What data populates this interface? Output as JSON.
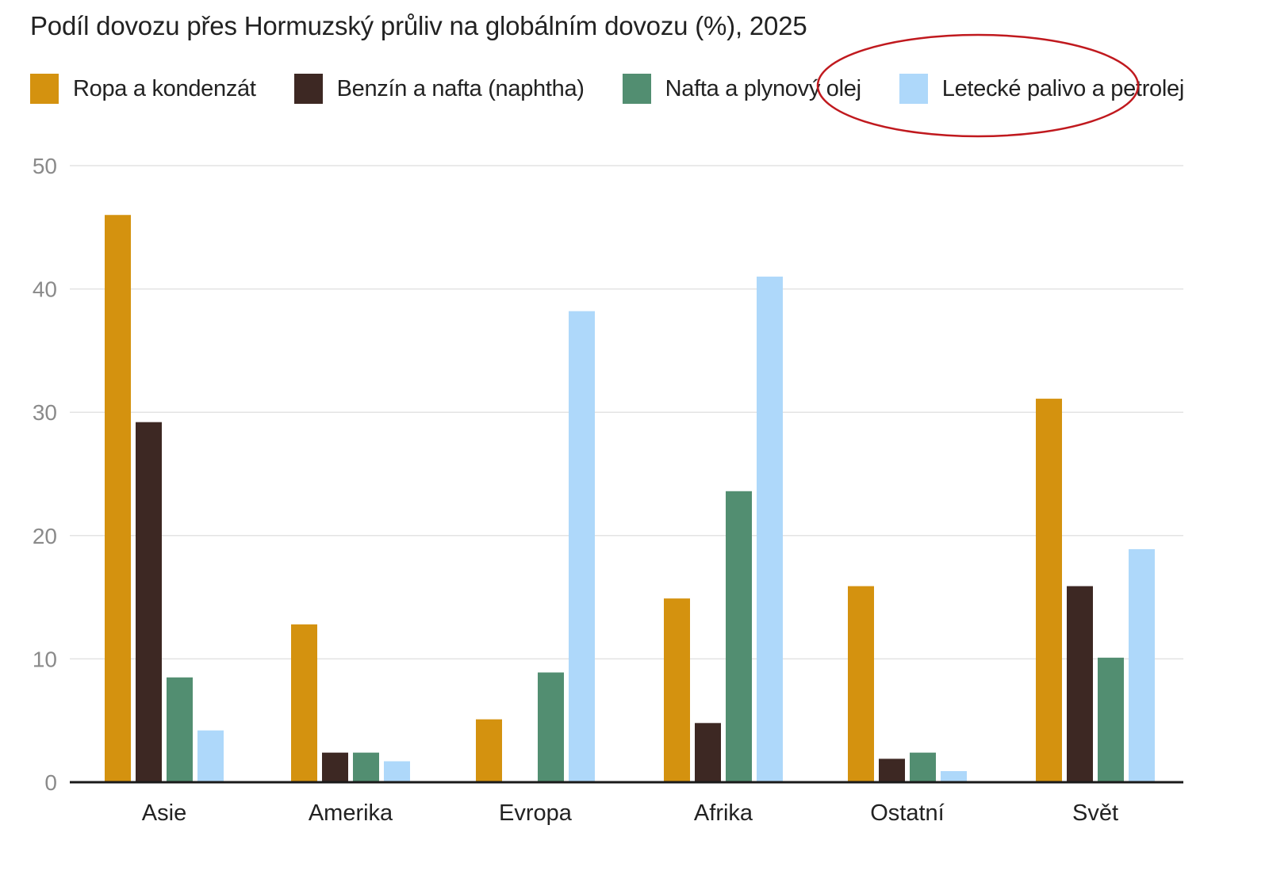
{
  "chart_data": {
    "type": "bar",
    "title": "Podíl dovozu přes Hormuzský průliv na globálním dovozu (%), 2025",
    "xlabel": "",
    "ylabel": "",
    "ylim": [
      0,
      50
    ],
    "yticks": [
      0,
      10,
      20,
      30,
      40,
      50
    ],
    "grid": true,
    "legend_position": "top-left",
    "categories": [
      "Asie",
      "Amerika",
      "Evropa",
      "Afrika",
      "Ostatní",
      "Svět"
    ],
    "series": [
      {
        "name": "Ropa a kondenzát",
        "color": "#D4920F",
        "values": [
          46,
          12.8,
          5.1,
          14.9,
          15.9,
          31.1
        ]
      },
      {
        "name": "Benzín a nafta (naphtha)",
        "color": "#3D2823",
        "values": [
          29.2,
          2.4,
          0,
          4.8,
          1.9,
          15.9
        ]
      },
      {
        "name": "Nafta a plynový olej",
        "color": "#528E71",
        "values": [
          8.5,
          2.4,
          8.9,
          23.6,
          2.4,
          10.1
        ]
      },
      {
        "name": "Letecké palivo a petrolej",
        "color": "#AED8FA",
        "values": [
          4.2,
          1.7,
          38.2,
          41,
          0.9,
          18.9
        ]
      }
    ],
    "highlight": {
      "series": "Letecké palivo a petrolej",
      "shape": "ellipse",
      "color": "#C0191E"
    }
  }
}
